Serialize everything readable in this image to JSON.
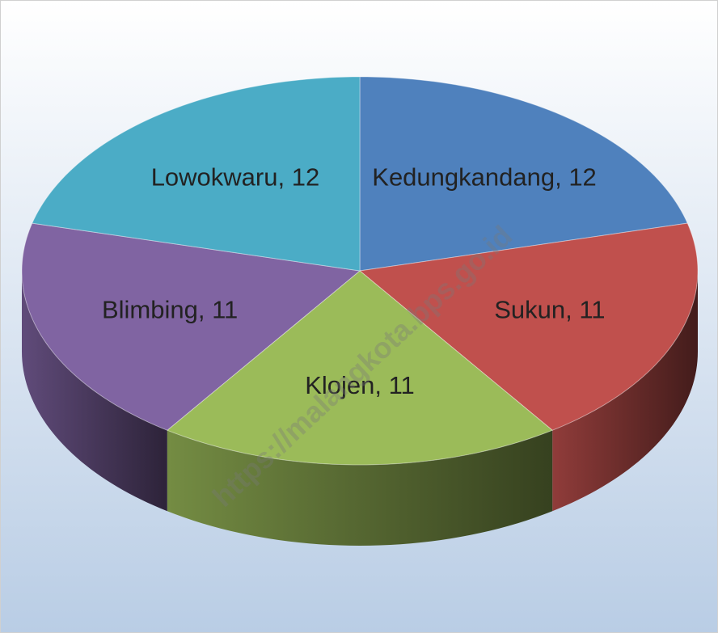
{
  "chart_data": {
    "type": "pie",
    "categories": [
      "Kedungkandang",
      "Sukun",
      "Klojen",
      "Blimbing",
      "Lowokwaru"
    ],
    "values": [
      12,
      11,
      11,
      11,
      12
    ],
    "value_labels": [
      "Kedungkandang, 12",
      "Sukun, 11",
      "Klojen, 11",
      "Blimbing, 11",
      "Lowokwaru, 12"
    ],
    "colors": [
      "#4f81bd",
      "#c0504d",
      "#9bbb59",
      "#8064a2",
      "#4bacc6"
    ],
    "watermark": "https://malangkota.bps.go.id"
  }
}
